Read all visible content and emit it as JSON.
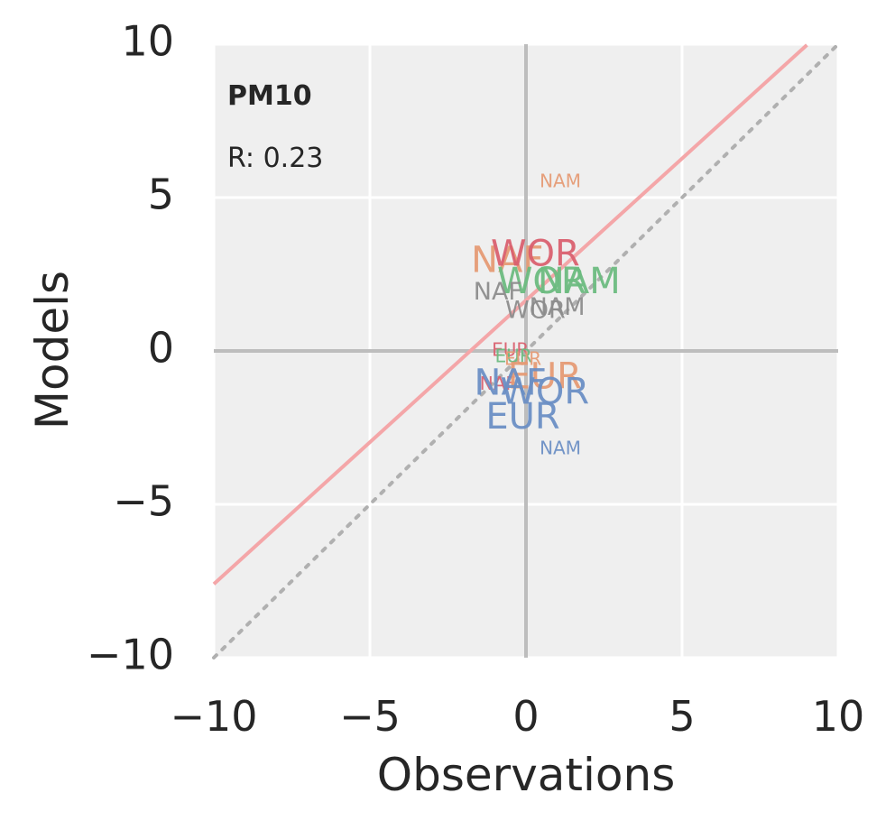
{
  "chart_data": {
    "type": "scatter",
    "title": "PM10",
    "annotation": "R: 0.23",
    "xlabel": "Observations",
    "ylabel": "Models",
    "xlim": [
      -10,
      10
    ],
    "ylim": [
      -10,
      10
    ],
    "x_ticks": [
      "−10",
      "−5",
      "0",
      "5",
      "10"
    ],
    "y_ticks": [
      "10",
      "5",
      "0",
      "−5",
      "−10"
    ],
    "grid": true,
    "regression_line": {
      "slope": 0.925,
      "intercept": 1.65,
      "x_range": [
        -10,
        9
      ],
      "color": "#f4a6a8"
    },
    "identity_line": {
      "style": "dotted",
      "color": "#b0b0b0"
    },
    "zero_lines": {
      "color": "#bdbdbd"
    },
    "colors": {
      "blue": "#6a8ec4",
      "orange": "#e59a74",
      "green": "#6cba7f",
      "red": "#d9606f",
      "gray": "#8c8c8c",
      "background": "#efefef"
    },
    "points": [
      {
        "label": "NAM",
        "x": 1.1,
        "y": 5.5,
        "color": "orange",
        "size": "small"
      },
      {
        "label": "NAF",
        "x": -0.6,
        "y": 2.9,
        "color": "orange",
        "size": "large"
      },
      {
        "label": "WOR",
        "x": 0.3,
        "y": 3.1,
        "color": "red",
        "size": "large"
      },
      {
        "label": "WOR",
        "x": 0.5,
        "y": 2.2,
        "color": "green",
        "size": "large"
      },
      {
        "label": "NAM",
        "x": 1.7,
        "y": 2.2,
        "color": "green",
        "size": "large"
      },
      {
        "label": "NAF",
        "x": -0.9,
        "y": 1.9,
        "color": "gray",
        "size": "medium"
      },
      {
        "label": "NAM",
        "x": 1.0,
        "y": 1.4,
        "color": "gray",
        "size": "medium"
      },
      {
        "label": "WOR",
        "x": 0.3,
        "y": 1.3,
        "color": "gray",
        "size": "medium"
      },
      {
        "label": "EUR",
        "x": -0.5,
        "y": 0.0,
        "color": "red",
        "size": "small"
      },
      {
        "label": "EUR",
        "x": -0.4,
        "y": -0.2,
        "color": "green",
        "size": "small"
      },
      {
        "label": "EUR",
        "x": -0.1,
        "y": -0.3,
        "color": "orange",
        "size": "small"
      },
      {
        "label": "NAF",
        "x": -0.9,
        "y": -1.1,
        "color": "red",
        "size": "small"
      },
      {
        "label": "EUR",
        "x": 0.6,
        "y": -0.9,
        "color": "orange",
        "size": "large"
      },
      {
        "label": "NAF",
        "x": -0.5,
        "y": -1.1,
        "color": "blue",
        "size": "large"
      },
      {
        "label": "WOR",
        "x": 0.6,
        "y": -1.4,
        "color": "blue",
        "size": "large"
      },
      {
        "label": "EUR",
        "x": -0.1,
        "y": -2.2,
        "color": "blue",
        "size": "large"
      },
      {
        "label": "NAM",
        "x": 1.1,
        "y": -3.2,
        "color": "blue",
        "size": "small"
      }
    ]
  }
}
